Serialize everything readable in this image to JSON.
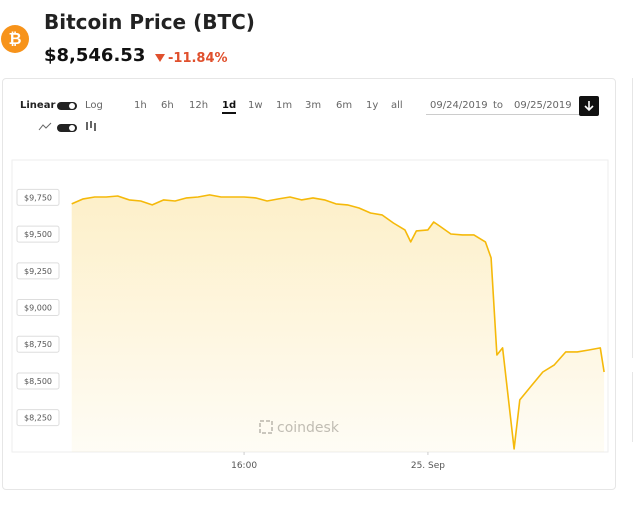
{
  "header": {
    "icon": "₿",
    "title": "Bitcoin Price (BTC)",
    "price": "$8,546.53",
    "change": "-11.84%"
  },
  "controls": {
    "scale_linear": "Linear",
    "scale_log": "Log",
    "ranges": [
      "1h",
      "6h",
      "12h",
      "1d",
      "1w",
      "1m",
      "3m",
      "6m",
      "1y",
      "all"
    ],
    "selected_range": "1d",
    "date_from": "09/24/2019",
    "date_separator": "to",
    "date_to": "09/25/2019"
  },
  "chart_data": {
    "type": "area",
    "color": "#f5b90a",
    "watermark": "coindesk",
    "x": [
      "2019-09-24T08:30",
      "2019-09-24T09:00",
      "2019-09-24T09:30",
      "2019-09-24T10:00",
      "2019-09-24T10:30",
      "2019-09-24T11:00",
      "2019-09-24T11:30",
      "2019-09-24T12:00",
      "2019-09-24T12:30",
      "2019-09-24T13:00",
      "2019-09-24T13:30",
      "2019-09-24T14:00",
      "2019-09-24T14:30",
      "2019-09-24T15:00",
      "2019-09-24T15:30",
      "2019-09-24T16:00",
      "2019-09-24T16:30",
      "2019-09-24T17:00",
      "2019-09-24T17:30",
      "2019-09-24T18:00",
      "2019-09-24T18:30",
      "2019-09-24T19:00",
      "2019-09-24T19:30",
      "2019-09-24T20:00",
      "2019-09-24T20:30",
      "2019-09-24T21:00",
      "2019-09-24T21:30",
      "2019-09-24T22:00",
      "2019-09-24T22:30",
      "2019-09-24T23:00",
      "2019-09-24T23:15",
      "2019-09-24T23:30",
      "2019-09-25T00:00",
      "2019-09-25T00:15",
      "2019-09-25T00:30",
      "2019-09-25T01:00",
      "2019-09-25T01:30",
      "2019-09-25T02:00",
      "2019-09-25T02:30",
      "2019-09-25T02:45",
      "2019-09-25T03:00",
      "2019-09-25T03:15",
      "2019-09-25T03:45",
      "2019-09-25T04:00",
      "2019-09-25T04:30",
      "2019-09-25T05:00",
      "2019-09-25T05:30",
      "2019-09-25T06:00",
      "2019-09-25T06:30",
      "2019-09-25T07:00",
      "2019-09-25T07:30",
      "2019-09-25T07:40"
    ],
    "values": [
      9706,
      9740,
      9753,
      9753,
      9760,
      9733,
      9726,
      9699,
      9733,
      9726,
      9747,
      9753,
      9767,
      9753,
      9753,
      9753,
      9747,
      9726,
      9740,
      9753,
      9733,
      9747,
      9733,
      9706,
      9699,
      9678,
      9644,
      9631,
      9576,
      9529,
      9447,
      9522,
      9529,
      9583,
      9556,
      9501,
      9495,
      9495,
      9447,
      9338,
      8677,
      8725,
      8037,
      8371,
      8466,
      8561,
      8609,
      8698,
      8698,
      8711,
      8725,
      8561
    ],
    "xlim": [
      "2019-09-24T08:15",
      "2019-09-25T07:45"
    ],
    "xticks": [
      {
        "value": "2019-09-24T16:00",
        "label": "16:00"
      },
      {
        "value": "2019-09-25T00:00",
        "label": "25. Sep"
      }
    ],
    "ylim": [
      8016,
      10005
    ],
    "yticks": [
      {
        "value": 8250,
        "label": "$8,250"
      },
      {
        "value": 8500,
        "label": "$8,500"
      },
      {
        "value": 8750,
        "label": "$8,750"
      },
      {
        "value": 9000,
        "label": "$9,000"
      },
      {
        "value": 9250,
        "label": "$9,250"
      },
      {
        "value": 9500,
        "label": "$9,500"
      },
      {
        "value": 9750,
        "label": "$9,750"
      }
    ]
  }
}
